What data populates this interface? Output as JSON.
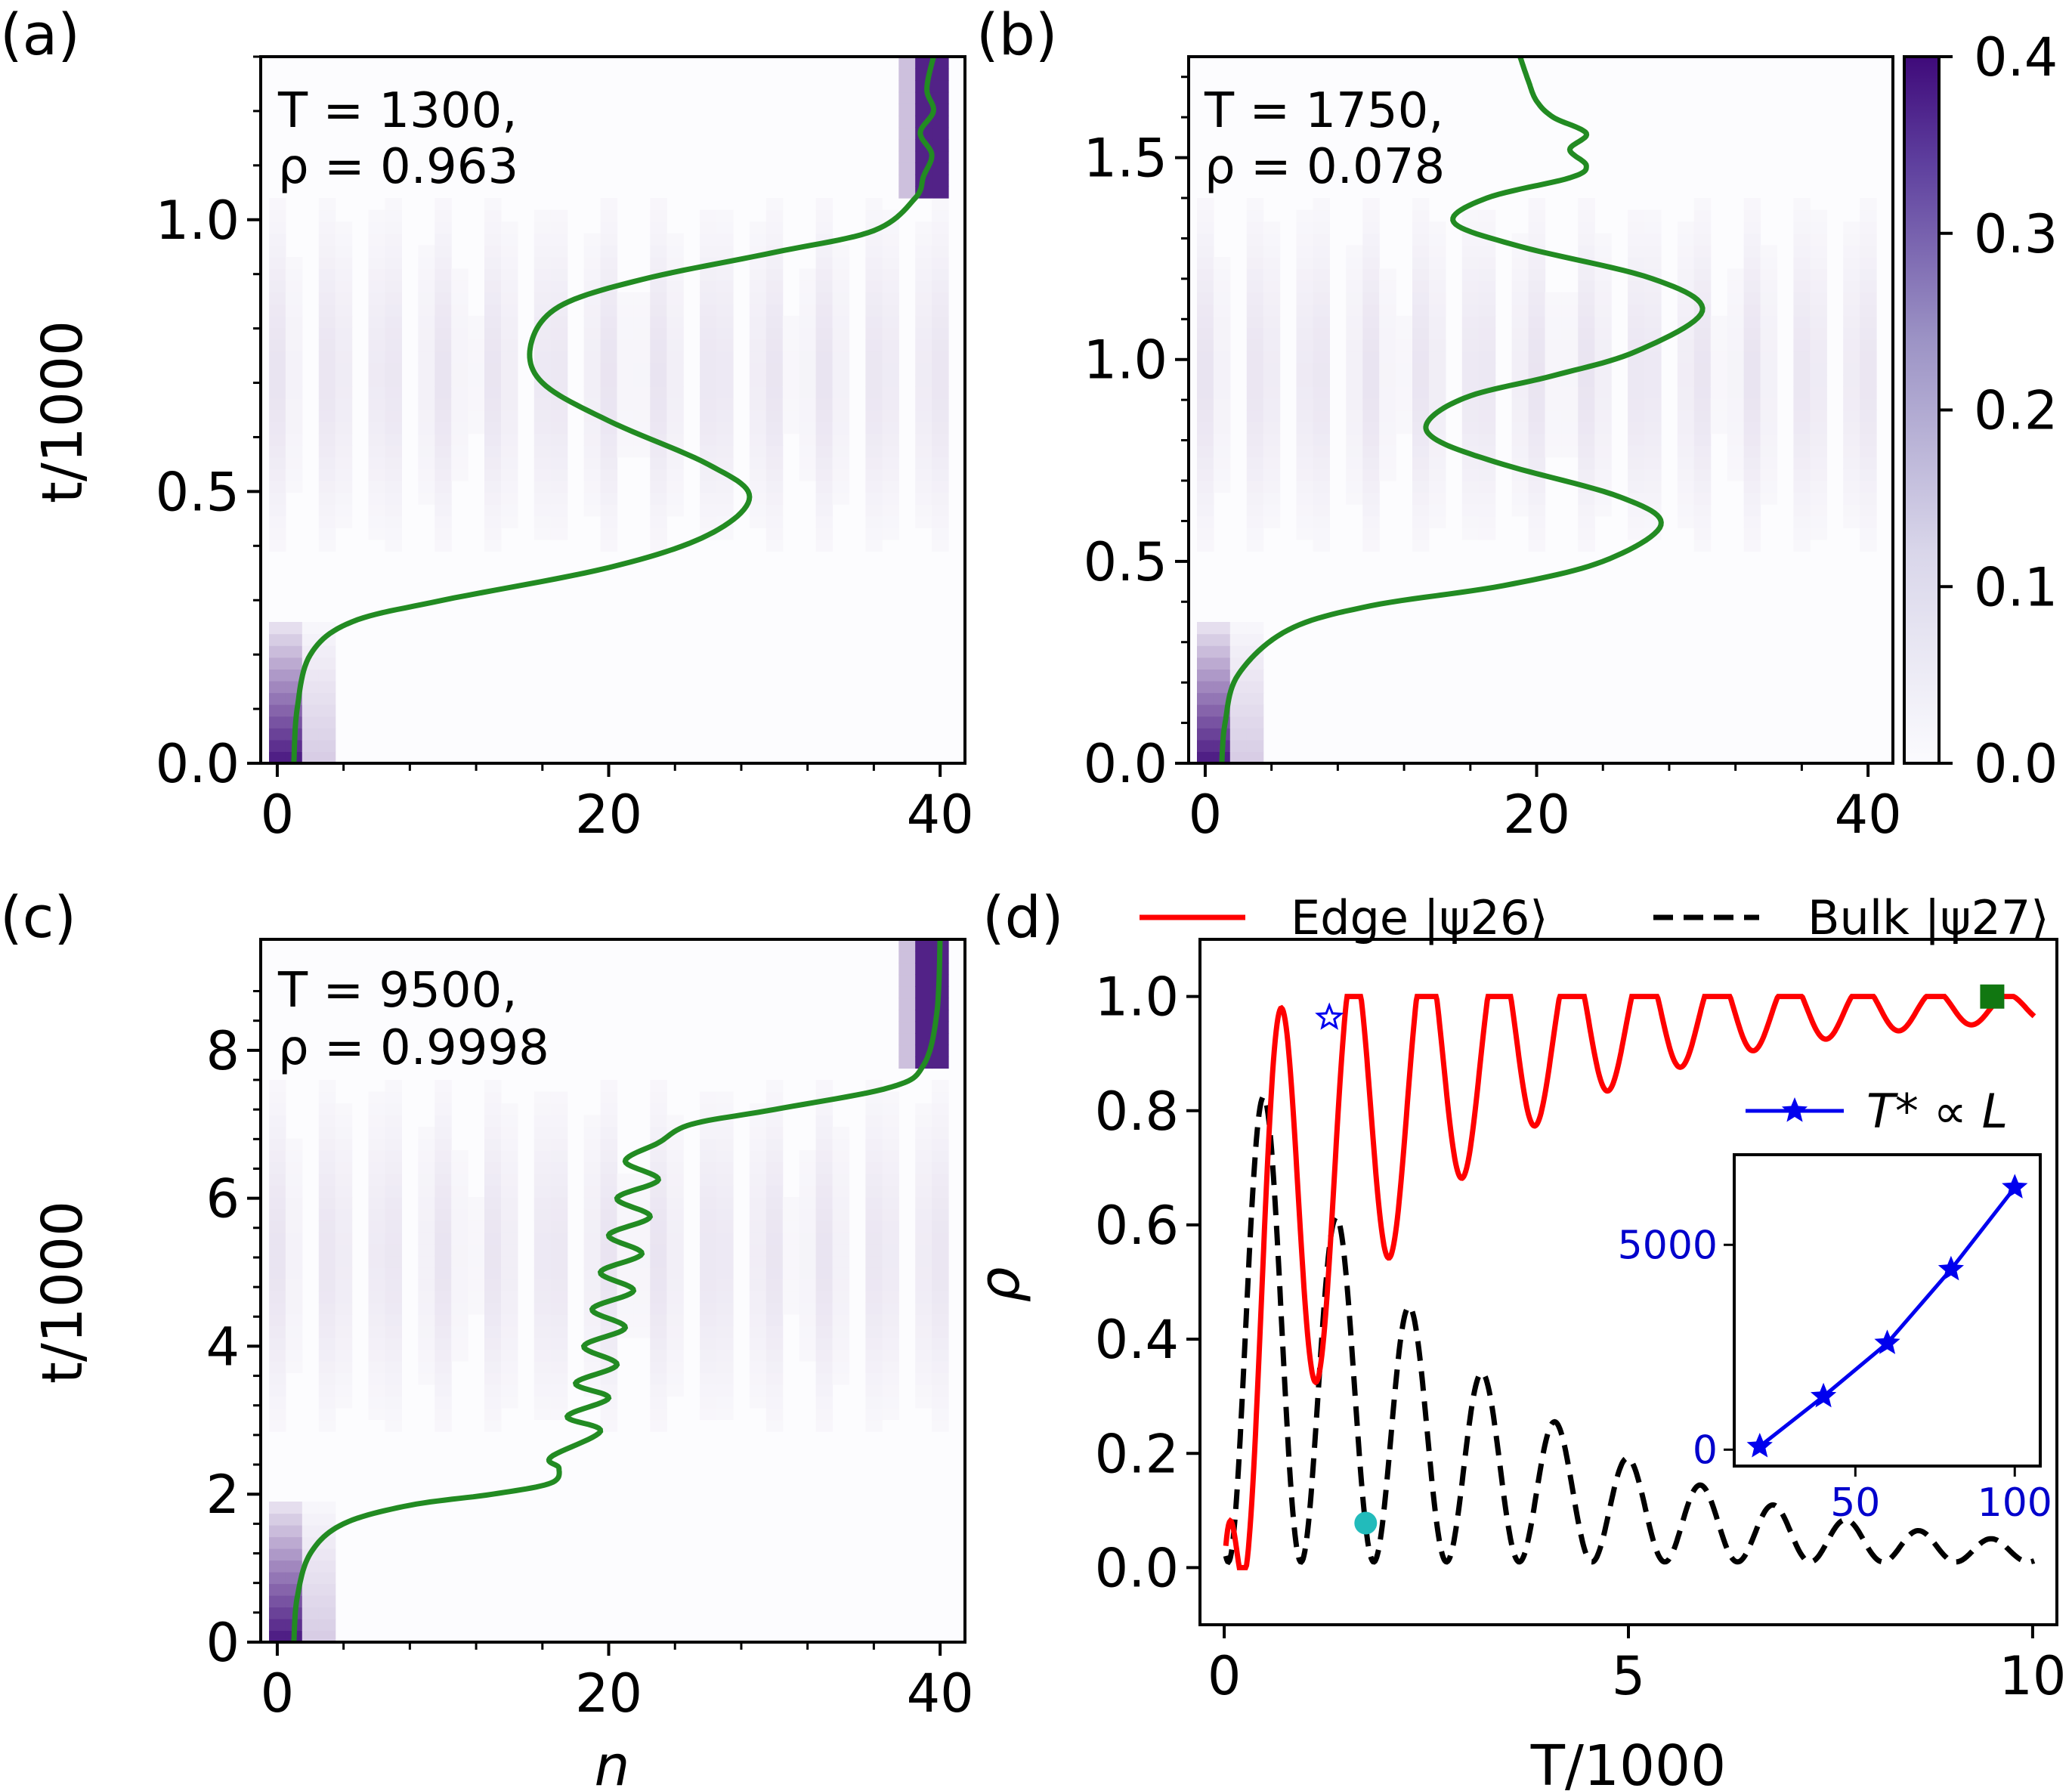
{
  "chart_data": [
    {
      "panel": "(a)",
      "type": "heatmap",
      "xlabel": "",
      "ylabel": "t/1000",
      "xlim": [
        -1,
        41.5
      ],
      "ylim": [
        0,
        1.3
      ],
      "xticks": [
        "0",
        "20",
        "40"
      ],
      "yticks": [
        "0.0",
        "0.5",
        "1.0"
      ],
      "annotation": [
        "T = 1300,",
        "ρ = 0.963"
      ],
      "center_of_mass_curve": [
        [
          1.0,
          0.0
        ],
        [
          1.2,
          0.1
        ],
        [
          2.0,
          0.2
        ],
        [
          4.5,
          0.26
        ],
        [
          10,
          0.3
        ],
        [
          20,
          0.36
        ],
        [
          26,
          0.42
        ],
        [
          28.5,
          0.49
        ],
        [
          26,
          0.55
        ],
        [
          20,
          0.63
        ],
        [
          16,
          0.7
        ],
        [
          15.3,
          0.77
        ],
        [
          17,
          0.84
        ],
        [
          22,
          0.89
        ],
        [
          30,
          0.94
        ],
        [
          36,
          0.98
        ],
        [
          38.5,
          1.04
        ],
        [
          39,
          1.08
        ],
        [
          39.5,
          1.12
        ],
        [
          38.8,
          1.16
        ],
        [
          39.6,
          1.2
        ],
        [
          39.2,
          1.24
        ],
        [
          39.6,
          1.3
        ]
      ]
    },
    {
      "panel": "(b)",
      "type": "heatmap",
      "xlabel": "",
      "ylabel": "",
      "xlim": [
        -1,
        41.5
      ],
      "ylim": [
        0,
        1.75
      ],
      "xticks": [
        "0",
        "20",
        "40"
      ],
      "yticks": [
        "0.0",
        "0.5",
        "1.0",
        "1.5"
      ],
      "annotation": [
        "T = 1750,",
        "ρ = 0.078"
      ],
      "colorbar": {
        "min": 0.0,
        "max": 0.4,
        "ticks": [
          "0.0",
          "0.1",
          "0.2",
          "0.3",
          "0.4"
        ]
      },
      "center_of_mass_curve": [
        [
          1.0,
          0.0
        ],
        [
          1.2,
          0.1
        ],
        [
          2.0,
          0.22
        ],
        [
          5,
          0.33
        ],
        [
          10,
          0.39
        ],
        [
          18,
          0.44
        ],
        [
          24,
          0.5
        ],
        [
          27.5,
          0.59
        ],
        [
          25,
          0.66
        ],
        [
          18,
          0.74
        ],
        [
          14,
          0.8
        ],
        [
          13.5,
          0.85
        ],
        [
          16,
          0.91
        ],
        [
          21,
          0.96
        ],
        [
          26,
          1.02
        ],
        [
          30,
          1.12
        ],
        [
          27,
          1.2
        ],
        [
          19,
          1.28
        ],
        [
          15,
          1.34
        ],
        [
          17,
          1.4
        ],
        [
          22,
          1.45
        ],
        [
          23,
          1.48
        ],
        [
          22,
          1.52
        ],
        [
          23,
          1.56
        ],
        [
          21,
          1.6
        ],
        [
          20,
          1.64
        ],
        [
          19.5,
          1.69
        ],
        [
          19,
          1.75
        ]
      ]
    },
    {
      "panel": "(c)",
      "type": "heatmap",
      "xlabel": "n",
      "ylabel": "t/1000",
      "xlim": [
        -1,
        41.5
      ],
      "ylim": [
        0,
        9.5
      ],
      "xticks": [
        "0",
        "20",
        "40"
      ],
      "yticks": [
        "0",
        "2",
        "4",
        "6",
        "8"
      ],
      "annotation": [
        "T = 9500,",
        "ρ = 0.9998"
      ],
      "center_of_mass_curve": [
        [
          1.0,
          0.0
        ],
        [
          1.2,
          0.6
        ],
        [
          2.0,
          1.2
        ],
        [
          4,
          1.6
        ],
        [
          8,
          1.85
        ],
        [
          13,
          2.0
        ],
        [
          16.5,
          2.15
        ],
        [
          17,
          2.35
        ],
        [
          16.5,
          2.5
        ],
        [
          19.5,
          2.85
        ],
        [
          17.5,
          3.05
        ],
        [
          20,
          3.3
        ],
        [
          18,
          3.5
        ],
        [
          20.5,
          3.75
        ],
        [
          18.5,
          4.0
        ],
        [
          21,
          4.25
        ],
        [
          19,
          4.5
        ],
        [
          21.5,
          4.75
        ],
        [
          19.5,
          5.0
        ],
        [
          22,
          5.25
        ],
        [
          20,
          5.5
        ],
        [
          22.5,
          5.75
        ],
        [
          20.5,
          6.0
        ],
        [
          23,
          6.25
        ],
        [
          21,
          6.5
        ],
        [
          23,
          6.75
        ],
        [
          25,
          7.0
        ],
        [
          30,
          7.2
        ],
        [
          37,
          7.5
        ],
        [
          39,
          7.8
        ],
        [
          39.8,
          8.5
        ],
        [
          40,
          9.5
        ]
      ]
    },
    {
      "panel": "(d)",
      "type": "line",
      "xlabel": "T/1000",
      "ylabel": "ρ",
      "xlim": [
        -0.3,
        10.3
      ],
      "ylim": [
        -0.1,
        1.1
      ],
      "xticks": [
        "0",
        "5",
        "10"
      ],
      "yticks": [
        "0.0",
        "0.2",
        "0.4",
        "0.6",
        "0.8",
        "1.0"
      ],
      "legend": [
        "Edge |ψ26⟩",
        "Bulk |ψ27⟩"
      ],
      "series": [
        {
          "name": "Edge |ψ26⟩",
          "style": "solid",
          "color": "#ff0000"
        },
        {
          "name": "Bulk |ψ27⟩",
          "style": "dashed",
          "color": "#000000"
        }
      ],
      "markers": [
        {
          "shape": "star",
          "color": "#0000ee",
          "x": 1.3,
          "y": 0.963
        },
        {
          "shape": "circle",
          "color": "#22bbbb",
          "x": 1.75,
          "y": 0.078
        },
        {
          "shape": "square",
          "color": "#117711",
          "x": 9.5,
          "y": 0.9998
        }
      ],
      "inset": {
        "legend": "T* ∝ L",
        "color": "#0000ee",
        "x": [
          20,
          40,
          60,
          80,
          100
        ],
        "y": [
          80,
          1300,
          2600,
          4400,
          6400
        ],
        "xlim": [
          12,
          108
        ],
        "ylim": [
          -400,
          7200
        ],
        "xticks": [
          "50",
          "100"
        ],
        "yticks": [
          "0",
          "5000"
        ]
      }
    }
  ],
  "labels": {
    "a": "(a)",
    "b": "(b)",
    "c": "(c)",
    "d": "(d)"
  }
}
